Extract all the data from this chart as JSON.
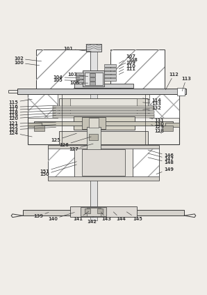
{
  "bg_color": "#f0ede8",
  "line_color": "#3a3a3a",
  "fig_width": 2.98,
  "fig_height": 4.23,
  "label_cfg": {
    "101": [
      0.33,
      0.025,
      0.44,
      0.038
    ],
    "102": [
      0.09,
      0.072,
      0.2,
      0.085
    ],
    "100": [
      0.09,
      0.092,
      0.19,
      0.105
    ],
    "107": [
      0.63,
      0.062,
      0.575,
      0.095
    ],
    "108": [
      0.64,
      0.078,
      0.575,
      0.108
    ],
    "109": [
      0.63,
      0.093,
      0.575,
      0.122
    ],
    "110": [
      0.63,
      0.108,
      0.575,
      0.135
    ],
    "111": [
      0.63,
      0.122,
      0.575,
      0.148
    ],
    "112": [
      0.84,
      0.148,
      0.8,
      0.222
    ],
    "113": [
      0.9,
      0.168,
      0.88,
      0.228
    ],
    "103": [
      0.35,
      0.148,
      0.425,
      0.158
    ],
    "104": [
      0.28,
      0.162,
      0.385,
      0.165
    ],
    "105": [
      0.28,
      0.175,
      0.385,
      0.178
    ],
    "106": [
      0.36,
      0.19,
      0.425,
      0.19
    ],
    "115": [
      0.065,
      0.282,
      0.155,
      0.268
    ],
    "116": [
      0.065,
      0.305,
      0.27,
      0.298
    ],
    "117": [
      0.065,
      0.318,
      0.27,
      0.31
    ],
    "118": [
      0.065,
      0.332,
      0.27,
      0.322
    ],
    "119": [
      0.065,
      0.346,
      0.27,
      0.334
    ],
    "120": [
      0.065,
      0.36,
      0.27,
      0.346
    ],
    "121": [
      0.065,
      0.385,
      0.27,
      0.378
    ],
    "122": [
      0.065,
      0.4,
      0.27,
      0.39
    ],
    "123": [
      0.065,
      0.414,
      0.27,
      0.402
    ],
    "124": [
      0.065,
      0.43,
      0.155,
      0.448
    ],
    "114": [
      0.755,
      0.275,
      0.69,
      0.263
    ],
    "133": [
      0.755,
      0.29,
      0.69,
      0.283
    ],
    "132": [
      0.755,
      0.31,
      0.69,
      0.318
    ],
    "131": [
      0.77,
      0.372,
      0.73,
      0.36
    ],
    "130": [
      0.77,
      0.386,
      0.73,
      0.375
    ],
    "129": [
      0.77,
      0.4,
      0.73,
      0.39
    ],
    "128": [
      0.77,
      0.422,
      0.78,
      0.432
    ],
    "125": [
      0.27,
      0.465,
      0.37,
      0.432
    ],
    "126": [
      0.31,
      0.488,
      0.44,
      0.448
    ],
    "127": [
      0.355,
      0.508,
      0.45,
      0.482
    ],
    "146": [
      0.815,
      0.54,
      0.715,
      0.512
    ],
    "147": [
      0.815,
      0.555,
      0.715,
      0.528
    ],
    "148": [
      0.815,
      0.572,
      0.715,
      0.548
    ],
    "151": [
      0.215,
      0.615,
      0.37,
      0.568
    ],
    "150": [
      0.215,
      0.63,
      0.37,
      0.582
    ],
    "149": [
      0.815,
      0.605,
      0.755,
      0.628
    ],
    "139": [
      0.185,
      0.83,
      0.235,
      0.812
    ],
    "140": [
      0.255,
      0.845,
      0.36,
      0.812
    ],
    "141": [
      0.375,
      0.845,
      0.428,
      0.808
    ],
    "142": [
      0.445,
      0.856,
      0.45,
      0.832
    ],
    "143": [
      0.515,
      0.845,
      0.488,
      0.81
    ],
    "144": [
      0.585,
      0.845,
      0.548,
      0.81
    ],
    "145": [
      0.665,
      0.845,
      0.612,
      0.81
    ]
  }
}
